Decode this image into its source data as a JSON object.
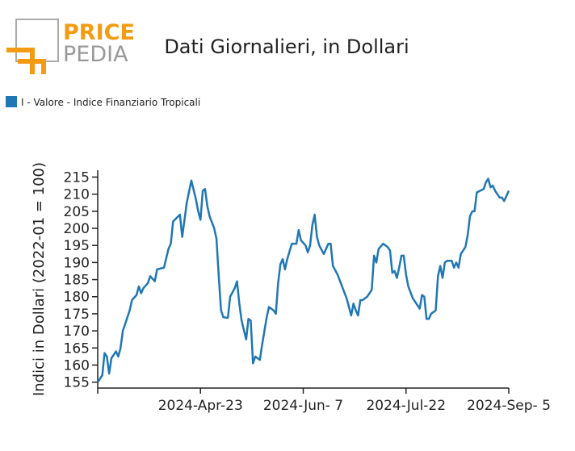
{
  "logo": {
    "top": "PRICE",
    "bottom": "PEDIA"
  },
  "chart_data": {
    "type": "line",
    "title": "Dati Giornalieri, in Dollari",
    "y_label": "Indici in Dollari (2022-01 = 100)",
    "series": [
      {
        "name": "I - Valore - Indice Finanziario Tropicali",
        "color": "#1f77b4",
        "values": [
          155,
          157,
          163.5,
          162.5,
          157.5,
          162,
          163,
          164,
          162.5,
          165,
          170,
          174,
          176,
          179,
          180.5,
          183,
          181,
          182.5,
          184,
          186,
          184.5,
          188,
          188.5,
          194,
          195.5,
          202,
          204,
          197.5,
          207.5,
          214,
          208.5,
          205,
          202.5,
          211,
          211.5,
          206.5,
          203.5,
          200,
          197,
          186,
          176,
          174,
          173.8,
          180,
          182.5,
          184.5,
          178,
          173,
          167.5,
          173.5,
          173,
          160.5,
          162.5,
          161.5,
          166,
          170,
          174,
          177,
          176,
          175,
          184,
          189.5,
          191,
          188,
          191,
          195.5,
          195.5,
          199.5,
          196.5,
          195,
          193,
          195,
          201,
          204,
          197.5,
          195,
          192.5,
          195.5,
          195.5,
          189,
          186.5,
          183,
          179.5,
          177,
          174.5,
          178,
          176,
          174.5,
          179,
          179,
          179.5,
          180,
          182,
          192,
          190,
          194,
          195.5,
          194.5,
          193.5,
          187,
          187.5,
          185.5,
          188.5,
          192,
          192,
          186.5,
          183,
          179.5,
          178.5,
          176.5,
          180.5,
          180,
          173.5,
          173.5,
          175,
          176,
          186,
          189,
          185.5,
          190,
          190.5,
          190.5,
          188.5,
          190,
          188.5,
          192.5,
          194.5,
          198,
          203.5,
          205,
          205,
          210.5,
          211.5,
          213.5,
          214.5,
          212,
          212.5,
          211,
          209,
          209,
          208,
          211
        ]
      }
    ],
    "x": [
      "2024-03-09",
      "2024-03-11",
      "2024-03-12",
      "2024-03-13",
      "2024-03-14",
      "2024-03-15",
      "2024-03-16",
      "2024-03-17",
      "2024-03-18",
      "2024-03-19",
      "2024-03-20",
      "2024-03-22",
      "2024-03-23",
      "2024-03-24",
      "2024-03-26",
      "2024-03-27",
      "2024-03-28",
      "2024-03-29",
      "2024-03-31",
      "2024-04-01",
      "2024-04-03",
      "2024-04-04",
      "2024-04-07",
      "2024-04-09",
      "2024-04-10",
      "2024-04-11",
      "2024-04-14",
      "2024-04-15",
      "2024-04-17",
      "2024-04-19",
      "2024-04-21",
      "2024-04-22",
      "2024-04-23",
      "2024-04-24",
      "2024-04-25",
      "2024-04-26",
      "2024-04-27",
      "2024-04-29",
      "2024-04-30",
      "2024-05-01",
      "2024-05-02",
      "2024-05-03",
      "2024-05-05",
      "2024-05-06",
      "2024-05-08",
      "2024-05-09",
      "2024-05-10",
      "2024-05-11",
      "2024-05-13",
      "2024-05-14",
      "2024-05-15",
      "2024-05-16",
      "2024-05-17",
      "2024-05-19",
      "2024-05-20",
      "2024-05-21",
      "2024-05-22",
      "2024-05-23",
      "2024-05-25",
      "2024-05-26",
      "2024-05-27",
      "2024-05-28",
      "2024-05-29",
      "2024-05-30",
      "2024-05-31",
      "2024-06-02",
      "2024-06-04",
      "2024-06-05",
      "2024-06-06",
      "2024-06-08",
      "2024-06-09",
      "2024-06-10",
      "2024-06-11",
      "2024-06-12",
      "2024-06-13",
      "2024-06-14",
      "2024-06-16",
      "2024-06-18",
      "2024-06-19",
      "2024-06-20",
      "2024-06-22",
      "2024-06-24",
      "2024-06-26",
      "2024-06-27",
      "2024-06-28",
      "2024-06-29",
      "2024-06-30",
      "2024-07-01",
      "2024-07-02",
      "2024-07-03",
      "2024-07-04",
      "2024-07-05",
      "2024-07-07",
      "2024-07-08",
      "2024-07-09",
      "2024-07-10",
      "2024-07-12",
      "2024-07-14",
      "2024-07-15",
      "2024-07-16",
      "2024-07-17",
      "2024-07-18",
      "2024-07-19",
      "2024-07-20",
      "2024-07-21",
      "2024-07-22",
      "2024-07-23",
      "2024-07-25",
      "2024-07-26",
      "2024-07-28",
      "2024-07-29",
      "2024-07-30",
      "2024-07-31",
      "2024-08-01",
      "2024-08-02",
      "2024-08-04",
      "2024-08-05",
      "2024-08-06",
      "2024-08-07",
      "2024-08-08",
      "2024-08-09",
      "2024-08-11",
      "2024-08-12",
      "2024-08-13",
      "2024-08-14",
      "2024-08-15",
      "2024-08-17",
      "2024-08-18",
      "2024-08-19",
      "2024-08-20",
      "2024-08-21",
      "2024-08-22",
      "2024-08-25",
      "2024-08-26",
      "2024-08-27",
      "2024-08-28",
      "2024-08-29",
      "2024-08-30",
      "2024-09-01",
      "2024-09-02",
      "2024-09-03",
      "2024-09-05"
    ],
    "xlim": [
      "2024-03-09",
      "2024-09-05"
    ],
    "xticks": [
      {
        "value": "2024-04-23",
        "label": "2024-Apr-23"
      },
      {
        "value": "2024-06-07",
        "label": "2024-Jun- 7"
      },
      {
        "value": "2024-07-22",
        "label": "2024-Jul-22"
      },
      {
        "value": "2024-09-05",
        "label": "2024-Sep- 5"
      }
    ],
    "ylim": [
      153.5,
      217
    ],
    "yticks": [
      155,
      160,
      165,
      170,
      175,
      180,
      185,
      190,
      195,
      200,
      205,
      210,
      215
    ],
    "legend": "top-left",
    "grid": false
  }
}
